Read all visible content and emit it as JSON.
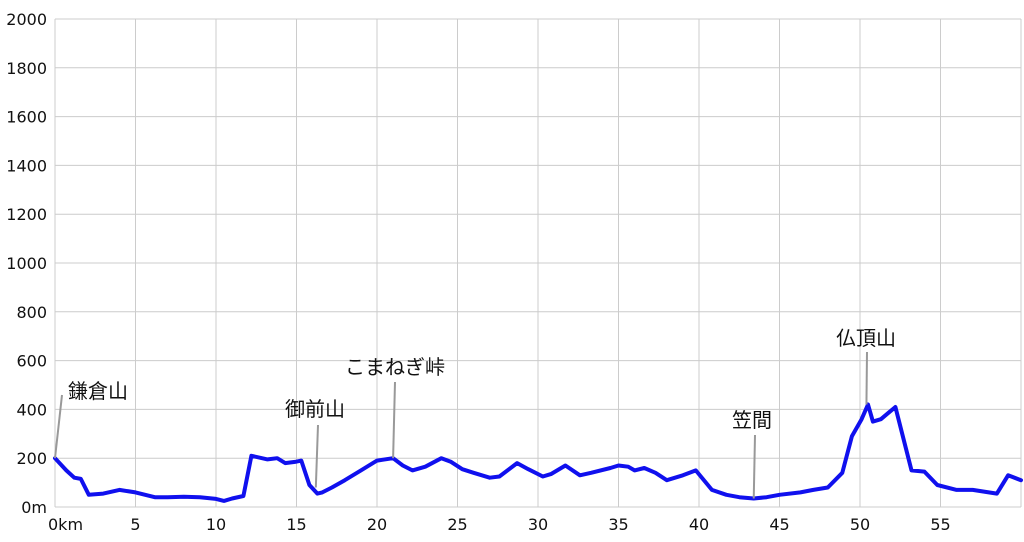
{
  "chart_data": {
    "type": "line",
    "title": "",
    "xlabel": "",
    "ylabel": "",
    "xlim": [
      0,
      60
    ],
    "ylim": [
      0,
      2000
    ],
    "grid": true,
    "line_color": "#1010ee",
    "x_ticks": [
      {
        "value": 0,
        "label": "0km"
      },
      {
        "value": 5,
        "label": "5"
      },
      {
        "value": 10,
        "label": "10"
      },
      {
        "value": 15,
        "label": "15"
      },
      {
        "value": 20,
        "label": "20"
      },
      {
        "value": 25,
        "label": "25"
      },
      {
        "value": 30,
        "label": "30"
      },
      {
        "value": 35,
        "label": "35"
      },
      {
        "value": 40,
        "label": "40"
      },
      {
        "value": 45,
        "label": "45"
      },
      {
        "value": 50,
        "label": "50"
      },
      {
        "value": 55,
        "label": "55"
      }
    ],
    "y_ticks": [
      {
        "value": 0,
        "label": "0m"
      },
      {
        "value": 200,
        "label": "200"
      },
      {
        "value": 400,
        "label": "400"
      },
      {
        "value": 600,
        "label": "600"
      },
      {
        "value": 800,
        "label": "800"
      },
      {
        "value": 1000,
        "label": "1000"
      },
      {
        "value": 1200,
        "label": "1200"
      },
      {
        "value": 1400,
        "label": "1400"
      },
      {
        "value": 1600,
        "label": "1600"
      },
      {
        "value": 1800,
        "label": "1800"
      },
      {
        "value": 2000,
        "label": "2000"
      }
    ],
    "series": [
      {
        "x": [
          0,
          0.7,
          1.2,
          1.6,
          2.1,
          3.0,
          4.0,
          5.0,
          6.2,
          7.0,
          8.0,
          9.0,
          10.0,
          10.5,
          11.0,
          11.7,
          12.2,
          13.2,
          13.8,
          14.3,
          14.9,
          15.3,
          15.8,
          16.3,
          16.6,
          17.2,
          18.0,
          19.0,
          20.0,
          21.0,
          21.6,
          22.2,
          23.0,
          24.0,
          24.6,
          25.3,
          26.0,
          27.0,
          27.6,
          28.7,
          29.4,
          30.3,
          30.8,
          31.7,
          32.6,
          33.3,
          34.5,
          35.0,
          35.6,
          36.0,
          36.6,
          37.3,
          38.0,
          39.0,
          39.8,
          40.8,
          41.7,
          42.5,
          43.4,
          44.2,
          45.0,
          46.3,
          47.1,
          48.0,
          48.9,
          49.5,
          50.1,
          50.5,
          50.8,
          51.3,
          52.2,
          53.2,
          54.0,
          54.8,
          56.0,
          57.0,
          58.0,
          58.5,
          59.2,
          60.0
        ],
        "y": [
          200,
          150,
          120,
          115,
          50,
          55,
          70,
          60,
          40,
          40,
          42,
          40,
          33,
          25,
          35,
          45,
          210,
          195,
          200,
          180,
          185,
          190,
          90,
          55,
          60,
          80,
          110,
          150,
          190,
          200,
          170,
          150,
          165,
          200,
          185,
          155,
          140,
          120,
          125,
          180,
          155,
          125,
          135,
          170,
          130,
          140,
          160,
          170,
          165,
          150,
          160,
          140,
          110,
          130,
          150,
          70,
          50,
          40,
          35,
          40,
          50,
          60,
          70,
          80,
          140,
          290,
          360,
          420,
          350,
          360,
          410,
          150,
          145,
          90,
          70,
          70,
          60,
          55,
          130,
          110
        ]
      }
    ],
    "annotations": [
      {
        "text": "鎌倉山",
        "x": 0.0,
        "y": 200
      },
      {
        "text": "御前山",
        "x": 16.2,
        "y": 80
      },
      {
        "text": "こまねぎ峠",
        "x": 21.0,
        "y": 200
      },
      {
        "text": "笠間",
        "x": 43.4,
        "y": 35
      },
      {
        "text": "仏頂山",
        "x": 50.4,
        "y": 420
      }
    ]
  }
}
